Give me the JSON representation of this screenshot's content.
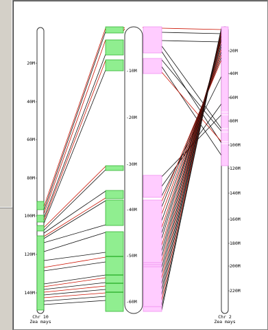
{
  "colors": {
    "panel_bg": "#ffffff",
    "chrom_fill": "#ffffff",
    "chrom_stroke": "#333333",
    "block_left_fill": "#90ee90",
    "block_left_stroke": "#22aa22",
    "block_right_fill": "#ffccff",
    "block_right_stroke": "#ee88ee",
    "link_dark": "#111111",
    "link_red": "#cc1100"
  },
  "chromosomes": {
    "left": {
      "name": "Chr 10",
      "species": "Zea mays",
      "ticks": [
        "20M",
        "40M",
        "60M",
        "80M",
        "100M",
        "120M",
        "140M"
      ]
    },
    "middle": {
      "ticks": [
        "-10M",
        "-20M",
        "-30M",
        "-40M",
        "-50M",
        "-60M"
      ]
    },
    "right": {
      "name": "Chr 2",
      "species": "Zea mays",
      "ticks": [
        "20M",
        "40M",
        "60M",
        "80M",
        "100M",
        "120M",
        "140M",
        "160M",
        "180M",
        "200M",
        "220M"
      ]
    }
  }
}
